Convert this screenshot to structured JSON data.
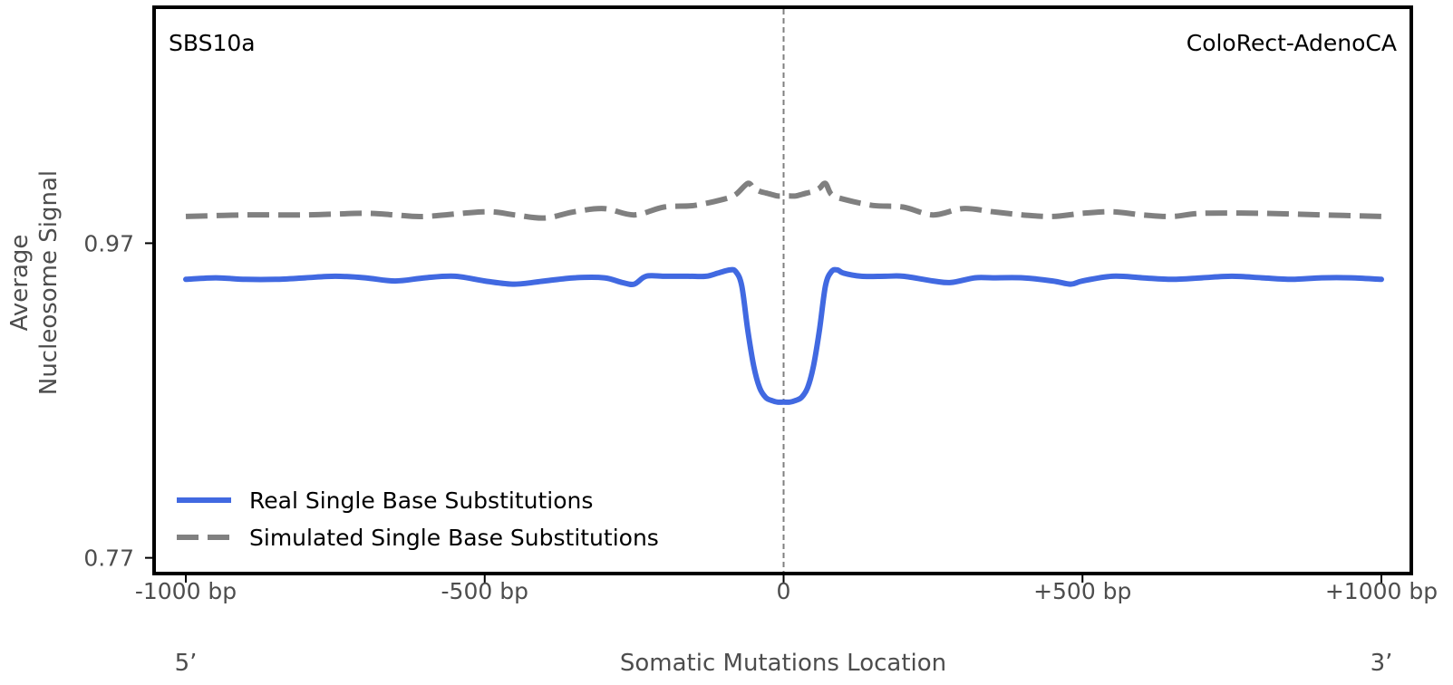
{
  "chart_data": {
    "type": "line",
    "signature_label": "SBS10a",
    "cancer_type_label": "ColoRect-AdenoCA",
    "xlabel": "Somatic Mutations Location",
    "ylabel_line1": "Average",
    "ylabel_line2": "Nucleosome Signal",
    "xlim": [
      -1000,
      1000
    ],
    "ylim": [
      0.76,
      1.12
    ],
    "x_ticks": [
      {
        "value": -1000,
        "label": "-1000 bp"
      },
      {
        "value": -500,
        "label": "-500 bp"
      },
      {
        "value": 0,
        "label": "0"
      },
      {
        "value": 500,
        "label": "+500 bp"
      },
      {
        "value": 1000,
        "label": "+1000 bp"
      }
    ],
    "y_ticks": [
      {
        "value": 0.97,
        "label": "0.97"
      },
      {
        "value": 0.77,
        "label": "0.77"
      }
    ],
    "strand_labels": {
      "left": "5’",
      "right": "3’"
    },
    "center_line": 0,
    "series": [
      {
        "name": "Real Single Base Substitutions",
        "color": "#4169e1",
        "dash": "solid",
        "x": [
          -1000,
          -950,
          -900,
          -850,
          -800,
          -750,
          -700,
          -650,
          -600,
          -550,
          -500,
          -450,
          -400,
          -350,
          -300,
          -270,
          -250,
          -230,
          -200,
          -160,
          -130,
          -110,
          -90,
          -80,
          -70,
          -60,
          -50,
          -40,
          -30,
          -20,
          -10,
          0,
          10,
          20,
          30,
          40,
          50,
          60,
          70,
          80,
          90,
          100,
          130,
          170,
          200,
          250,
          280,
          320,
          350,
          400,
          450,
          480,
          500,
          550,
          600,
          650,
          700,
          750,
          800,
          850,
          900,
          950,
          1000
        ],
        "values": [
          0.947,
          0.948,
          0.947,
          0.947,
          0.948,
          0.949,
          0.948,
          0.946,
          0.948,
          0.949,
          0.946,
          0.944,
          0.946,
          0.948,
          0.948,
          0.945,
          0.944,
          0.949,
          0.949,
          0.949,
          0.949,
          0.951,
          0.953,
          0.952,
          0.943,
          0.915,
          0.892,
          0.878,
          0.872,
          0.87,
          0.869,
          0.869,
          0.869,
          0.87,
          0.872,
          0.878,
          0.892,
          0.915,
          0.943,
          0.952,
          0.953,
          0.951,
          0.949,
          0.949,
          0.949,
          0.946,
          0.945,
          0.948,
          0.948,
          0.948,
          0.946,
          0.944,
          0.946,
          0.949,
          0.948,
          0.947,
          0.948,
          0.949,
          0.948,
          0.947,
          0.948,
          0.948,
          0.947
        ]
      },
      {
        "name": "Simulated Single Base Substitutions",
        "color": "#808080",
        "dash": "dashed",
        "x": [
          -1000,
          -900,
          -800,
          -700,
          -650,
          -600,
          -500,
          -450,
          -400,
          -350,
          -300,
          -250,
          -200,
          -150,
          -100,
          -80,
          -60,
          -50,
          -40,
          -30,
          -20,
          -10,
          0,
          10,
          20,
          30,
          40,
          50,
          60,
          70,
          80,
          100,
          150,
          200,
          250,
          300,
          350,
          400,
          450,
          500,
          550,
          600,
          650,
          700,
          800,
          900,
          1000
        ],
        "values": [
          0.987,
          0.988,
          0.988,
          0.989,
          0.988,
          0.987,
          0.99,
          0.988,
          0.986,
          0.99,
          0.992,
          0.988,
          0.993,
          0.994,
          0.998,
          1.001,
          1.008,
          1.005,
          1.003,
          1.002,
          1.001,
          1.0,
          1.0,
          1.0,
          1.0,
          1.001,
          1.002,
          1.003,
          1.005,
          1.008,
          1.001,
          0.998,
          0.994,
          0.993,
          0.988,
          0.992,
          0.99,
          0.988,
          0.987,
          0.989,
          0.99,
          0.988,
          0.987,
          0.989,
          0.989,
          0.988,
          0.987
        ]
      }
    ],
    "legend": {
      "position": "lower-left",
      "entries": [
        "Real Single Base Substitutions",
        "Simulated Single Base Substitutions"
      ]
    }
  }
}
